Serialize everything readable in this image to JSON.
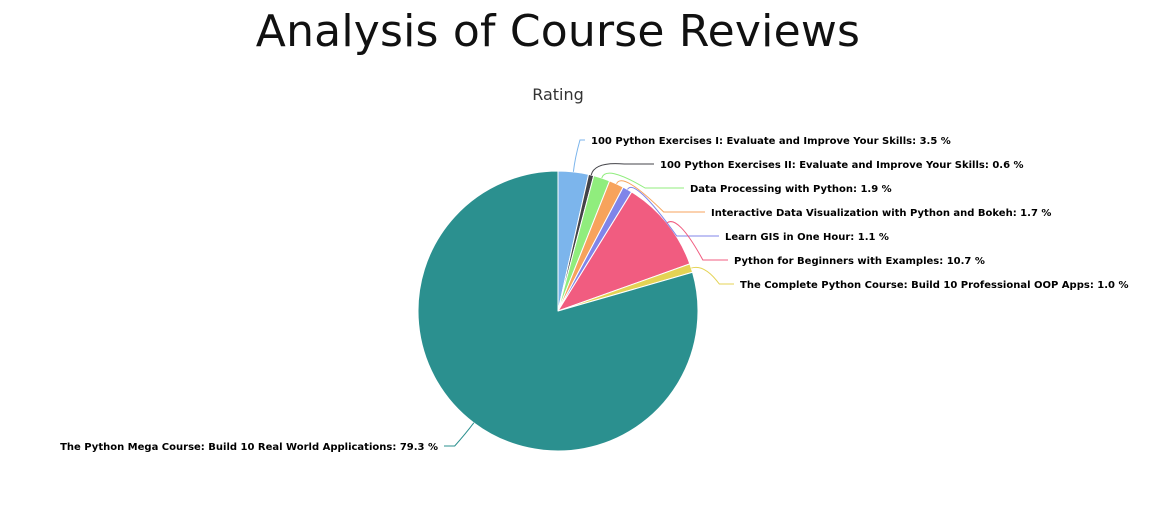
{
  "page": {
    "title": "Analysis of Course Reviews"
  },
  "chart_data": {
    "type": "pie",
    "title": "Rating",
    "value_suffix": " %",
    "slices": [
      {
        "name": "100 Python Exercises I: Evaluate and Improve Your Skills",
        "value": 3.5,
        "color": "#7cb5ec"
      },
      {
        "name": "100 Python Exercises II: Evaluate and Improve Your Skills",
        "value": 0.6,
        "color": "#434348"
      },
      {
        "name": "Data Processing with Python",
        "value": 1.9,
        "color": "#90ed7d"
      },
      {
        "name": "Interactive Data Visualization with Python and Bokeh",
        "value": 1.7,
        "color": "#f7a35c"
      },
      {
        "name": "Learn GIS in One Hour",
        "value": 1.1,
        "color": "#8085e9"
      },
      {
        "name": "Python for Beginners with Examples",
        "value": 10.7,
        "color": "#f15c80"
      },
      {
        "name": "The Complete Python Course: Build 10 Professional OOP Apps",
        "value": 1.0,
        "color": "#e4d354"
      },
      {
        "name": "The Python Mega Course: Build 10 Real World Applications",
        "value": 79.3,
        "color": "#2b908f"
      }
    ]
  }
}
